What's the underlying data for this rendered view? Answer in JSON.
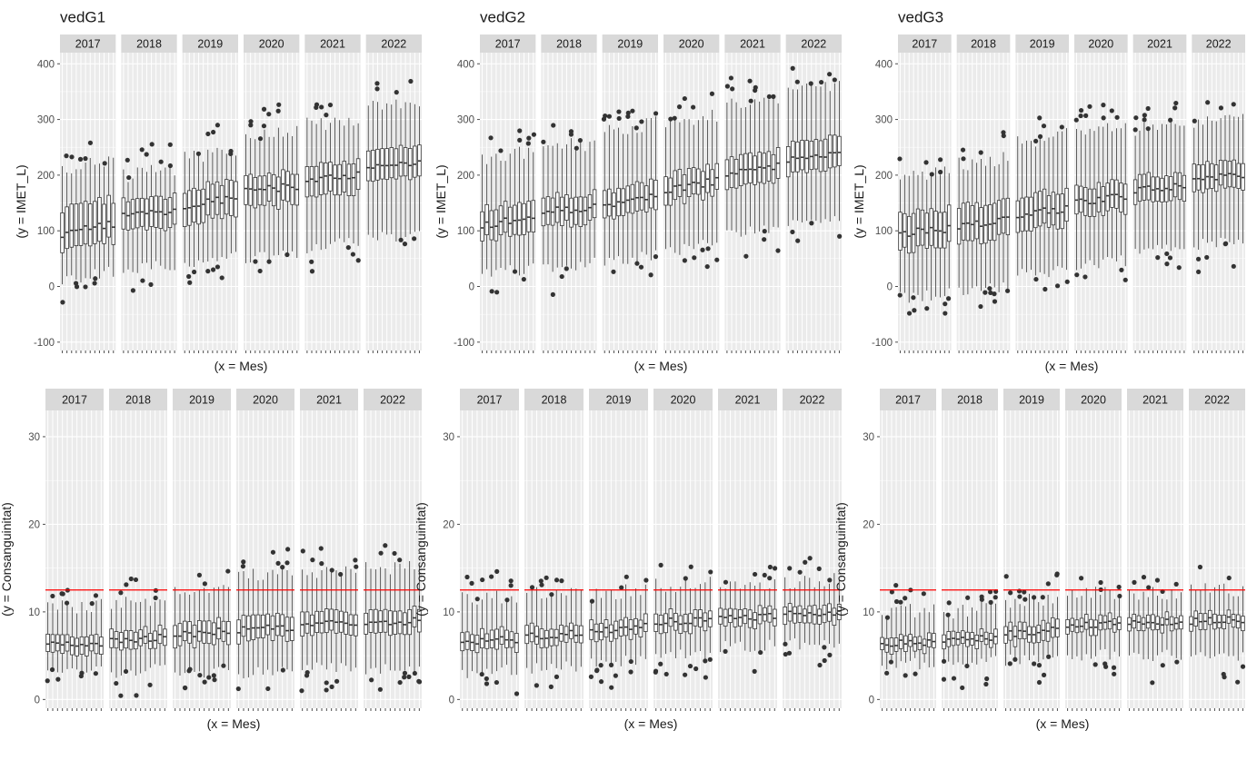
{
  "colors": {
    "panel_bg": "#ebebeb",
    "grid": "#ffffff",
    "strip_bg": "#d9d9d9",
    "box_line": "#333333",
    "point": "#333333",
    "ref_line": "#ff0000",
    "text": "#1a1a1a",
    "axis_text": "#4d4d4d"
  },
  "chart_data": [
    {
      "type": "boxplot",
      "title": "vedG1",
      "xlabel": "(x = Mes)",
      "ylabel": "(y = IMET_L)",
      "facets": [
        "2017",
        "2018",
        "2019",
        "2020",
        "2021",
        "2022"
      ],
      "months_per_facet": 12,
      "ylim": [
        -115,
        420
      ],
      "yticks": [
        -100,
        0,
        100,
        200,
        300,
        400
      ],
      "median_by_year": [
        95,
        128,
        145,
        170,
        190,
        210
      ],
      "q1_by_year": [
        65,
        100,
        115,
        140,
        160,
        185
      ],
      "q3_by_year": [
        140,
        155,
        175,
        195,
        215,
        240
      ],
      "whisker_low_by_year": [
        10,
        30,
        40,
        50,
        70,
        85
      ],
      "whisker_high_by_year": [
        210,
        200,
        230,
        270,
        290,
        320
      ],
      "ref_line": null
    },
    {
      "type": "boxplot",
      "title": "vedG2",
      "xlabel": "(x = Mes)",
      "ylabel": "(y = IMET_L)",
      "facets": [
        "2017",
        "2018",
        "2019",
        "2020",
        "2021",
        "2022"
      ],
      "months_per_facet": 12,
      "ylim": [
        -115,
        420
      ],
      "yticks": [
        -100,
        0,
        100,
        200,
        300,
        400
      ],
      "median_by_year": [
        110,
        135,
        148,
        172,
        205,
        225
      ],
      "q1_by_year": [
        85,
        110,
        125,
        150,
        178,
        200
      ],
      "q3_by_year": [
        140,
        160,
        175,
        200,
        232,
        255
      ],
      "whisker_low_by_year": [
        20,
        35,
        45,
        60,
        95,
        110
      ],
      "whisker_high_by_year": [
        230,
        250,
        280,
        290,
        330,
        350
      ],
      "ref_line": null
    },
    {
      "type": "boxplot",
      "title": "vedG3",
      "xlabel": "(x = Mes)",
      "ylabel": "(y = IMET_L)",
      "facets": [
        "2017",
        "2018",
        "2019",
        "2020",
        "2021",
        "2022"
      ],
      "months_per_facet": 12,
      "ylim": [
        -115,
        420
      ],
      "yticks": [
        -100,
        0,
        100,
        200,
        300,
        400
      ],
      "median_by_year": [
        95,
        110,
        128,
        150,
        172,
        190
      ],
      "q1_by_year": [
        65,
        80,
        100,
        125,
        150,
        168
      ],
      "q3_by_year": [
        130,
        145,
        160,
        175,
        195,
        215
      ],
      "whisker_low_by_year": [
        -20,
        -10,
        20,
        35,
        60,
        75
      ],
      "whisker_high_by_year": [
        200,
        220,
        260,
        280,
        280,
        290
      ],
      "ref_line": null
    },
    {
      "type": "boxplot",
      "title": "",
      "xlabel": "(x = Mes)",
      "ylabel": "(y = Consanguinitat)",
      "facets": [
        "2017",
        "2018",
        "2019",
        "2020",
        "2021",
        "2022"
      ],
      "months_per_facet": 12,
      "ylim": [
        -1,
        33
      ],
      "yticks": [
        0,
        10,
        20,
        30
      ],
      "median_by_year": [
        6.3,
        6.6,
        7.5,
        8.0,
        8.5,
        8.8
      ],
      "q1_by_year": [
        5.3,
        5.7,
        6.3,
        6.8,
        7.3,
        7.6
      ],
      "q3_by_year": [
        7.3,
        7.6,
        8.8,
        9.4,
        9.8,
        10.2
      ],
      "whisker_low_by_year": [
        3.0,
        3.0,
        3.0,
        3.0,
        3.5,
        3.5
      ],
      "whisker_high_by_year": [
        10.5,
        11.0,
        12.5,
        14.0,
        14.5,
        15.0
      ],
      "ref_line": 12.5
    },
    {
      "type": "boxplot",
      "title": "",
      "xlabel": "(x = Mes)",
      "ylabel": "(y = Consanguinitat)",
      "facets": [
        "2017",
        "2018",
        "2019",
        "2020",
        "2021",
        "2022"
      ],
      "months_per_facet": 12,
      "ylim": [
        -1,
        33
      ],
      "yticks": [
        0,
        10,
        20,
        30
      ],
      "median_by_year": [
        6.5,
        7.2,
        7.8,
        8.8,
        9.3,
        9.7
      ],
      "q1_by_year": [
        5.5,
        6.3,
        6.8,
        7.8,
        8.4,
        8.7
      ],
      "q3_by_year": [
        7.5,
        8.2,
        8.8,
        9.8,
        10.2,
        10.6
      ],
      "whisker_low_by_year": [
        3.0,
        3.5,
        4.0,
        5.0,
        6.0,
        6.3
      ],
      "whisker_high_by_year": [
        11.5,
        12.0,
        12.0,
        13.0,
        13.0,
        13.5
      ],
      "ref_line": 12.5
    },
    {
      "type": "boxplot",
      "title": "",
      "xlabel": "(x = Mes)",
      "ylabel": "(y = Consanguinitat)",
      "facets": [
        "2017",
        "2018",
        "2019",
        "2020",
        "2021",
        "2022"
      ],
      "months_per_facet": 12,
      "ylim": [
        -1,
        33
      ],
      "yticks": [
        0,
        10,
        20,
        30
      ],
      "median_by_year": [
        6.4,
        6.6,
        7.4,
        8.4,
        8.8,
        9.0
      ],
      "q1_by_year": [
        5.6,
        5.8,
        6.4,
        7.6,
        8.0,
        8.2
      ],
      "q3_by_year": [
        7.2,
        7.4,
        8.4,
        9.2,
        9.6,
        9.8
      ],
      "whisker_low_by_year": [
        4.0,
        4.0,
        4.5,
        5.0,
        5.0,
        5.0
      ],
      "whisker_high_by_year": [
        10.0,
        10.0,
        11.0,
        12.0,
        12.0,
        12.5
      ],
      "ref_line": 12.5
    }
  ]
}
